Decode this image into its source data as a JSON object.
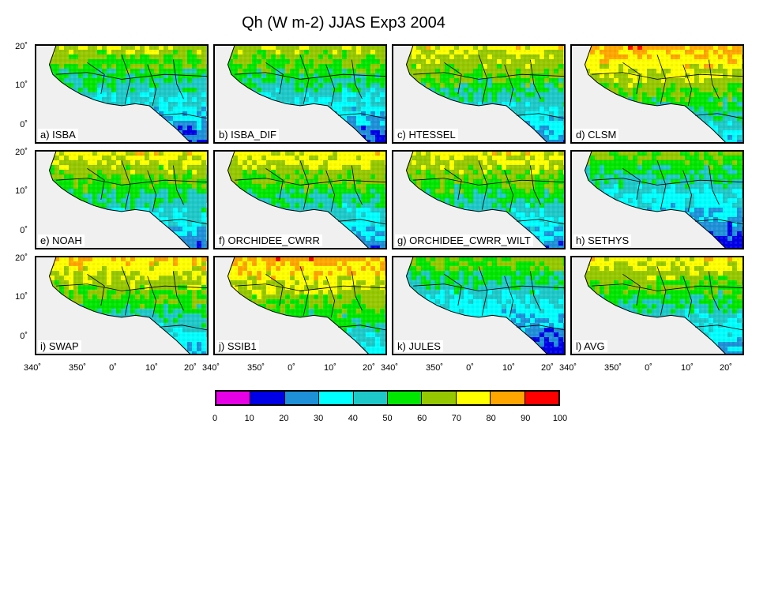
{
  "title": "Qh (W m-2) JJAS Exp3 2004",
  "panels": [
    {
      "label": "a) ISBA",
      "style": "mid-low"
    },
    {
      "label": "b) ISBA_DIF",
      "style": "mid-low"
    },
    {
      "label": "c) HTESSEL",
      "style": "mid"
    },
    {
      "label": "d) CLSM",
      "style": "high"
    },
    {
      "label": "e) NOAH",
      "style": "mid"
    },
    {
      "label": "f) ORCHIDEE_CWRR",
      "style": "mid"
    },
    {
      "label": "g) ORCHIDEE_CWRR_WILT",
      "style": "mid"
    },
    {
      "label": "h) SETHYS",
      "style": "low"
    },
    {
      "label": "i) SWAP",
      "style": "mid-high"
    },
    {
      "label": "j) SSIB1",
      "style": "high"
    },
    {
      "label": "k) JULES",
      "style": "low"
    },
    {
      "label": "l) AVG",
      "style": "mid"
    }
  ],
  "y_ticks": [
    "20˚",
    "10˚",
    "0˚"
  ],
  "x_ticks": [
    "340˚",
    "350˚",
    "0˚",
    "10˚",
    "20˚"
  ],
  "colorbar": {
    "labels": [
      "0",
      "10",
      "20",
      "30",
      "40",
      "50",
      "60",
      "70",
      "80",
      "90",
      "100"
    ],
    "colors": [
      "#e600e6",
      "#0000e6",
      "#1e90d8",
      "#00ffff",
      "#1ec8c8",
      "#00e600",
      "#96c800",
      "#ffff00",
      "#ffa500",
      "#ff0000"
    ]
  },
  "land_mask_color": "#f0f0f0"
}
